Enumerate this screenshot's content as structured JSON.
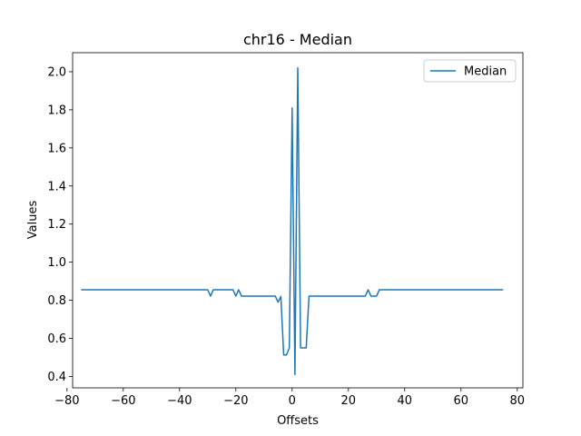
{
  "chart_data": {
    "type": "line",
    "title": "chr16 - Median",
    "xlabel": "Offsets",
    "ylabel": "Values",
    "xlim": [
      -78,
      82
    ],
    "ylim": [
      0.34,
      2.1
    ],
    "xticks": [
      -80,
      -60,
      -40,
      -20,
      0,
      20,
      40,
      60,
      80
    ],
    "yticks": [
      0.4,
      0.6,
      0.8,
      1.0,
      1.2,
      1.4,
      1.6,
      1.8,
      2.0
    ],
    "grid": false,
    "legend_position": "top-right",
    "series": [
      {
        "name": "Median",
        "color": "#1f77b4",
        "points": [
          [
            -75,
            0.855
          ],
          [
            -30,
            0.855
          ],
          [
            -29,
            0.822
          ],
          [
            -28,
            0.855
          ],
          [
            -21,
            0.855
          ],
          [
            -20,
            0.822
          ],
          [
            -19,
            0.855
          ],
          [
            -18,
            0.822
          ],
          [
            -6,
            0.822
          ],
          [
            -5,
            0.79
          ],
          [
            -4,
            0.82
          ],
          [
            -3,
            0.513
          ],
          [
            -2,
            0.513
          ],
          [
            -1,
            0.55
          ],
          [
            0,
            1.81
          ],
          [
            1,
            0.41
          ],
          [
            2,
            2.02
          ],
          [
            3,
            0.55
          ],
          [
            4,
            0.55
          ],
          [
            5,
            0.55
          ],
          [
            6,
            0.822
          ],
          [
            26,
            0.822
          ],
          [
            27,
            0.855
          ],
          [
            28,
            0.822
          ],
          [
            30,
            0.822
          ],
          [
            31,
            0.855
          ],
          [
            75,
            0.855
          ]
        ]
      }
    ]
  }
}
